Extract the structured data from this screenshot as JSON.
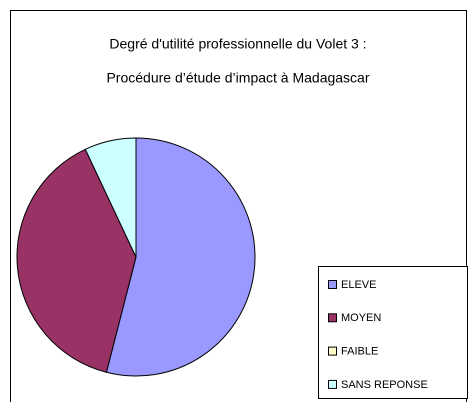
{
  "chart_data": {
    "type": "pie",
    "title": [
      "Degré d'utilité professionnelle du Volet 3 :",
      "Procédure d’étude d’impact à Madagascar"
    ],
    "categories": [
      "ELEVE",
      "MOYEN",
      "FAIBLE",
      "SANS REPONSE"
    ],
    "values": [
      54,
      39,
      0,
      7
    ],
    "colors": [
      "#9999ff",
      "#993366",
      "#ffffcc",
      "#ccffff"
    ],
    "legend": "right"
  }
}
